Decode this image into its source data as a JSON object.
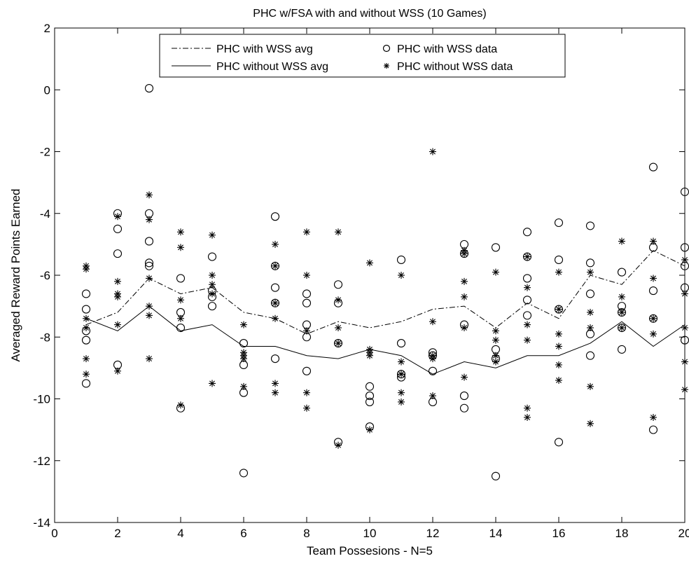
{
  "chart_data": {
    "type": "line",
    "title": "PHC w/FSA with and without WSS (10 Games)",
    "xlabel": "Team Possesions - N=5",
    "ylabel": "Averaged Reward Points Earned",
    "xlim": [
      0,
      20
    ],
    "ylim": [
      -14,
      2
    ],
    "xticks": [
      0,
      2,
      4,
      6,
      8,
      10,
      12,
      14,
      16,
      18,
      20
    ],
    "yticks": [
      2,
      0,
      -2,
      -4,
      -6,
      -8,
      -10,
      -12,
      -14
    ],
    "grid": false,
    "legend_position": "top",
    "x": [
      1,
      2,
      3,
      4,
      5,
      6,
      7,
      8,
      9,
      10,
      11,
      12,
      13,
      14,
      15,
      16,
      17,
      18,
      19,
      20
    ],
    "series": [
      {
        "name": "PHC with WSS avg",
        "style": "dash-dot",
        "values": [
          -7.6,
          -7.2,
          -6.1,
          -6.6,
          -6.4,
          -7.2,
          -7.4,
          -7.9,
          -7.5,
          -7.7,
          -7.5,
          -7.1,
          -7.0,
          -7.7,
          -6.9,
          -7.4,
          -6.0,
          -6.3,
          -5.2,
          -5.7
        ]
      },
      {
        "name": "PHC without WSS avg",
        "style": "solid",
        "values": [
          -7.4,
          -7.8,
          -7.0,
          -7.8,
          -7.6,
          -8.3,
          -8.3,
          -8.6,
          -8.7,
          -8.4,
          -8.6,
          -9.2,
          -8.8,
          -9.0,
          -8.6,
          -8.6,
          -8.2,
          -7.5,
          -8.3,
          -7.6
        ]
      },
      {
        "name": "PHC with WSS data",
        "marker": "circle",
        "points": [
          [
            1,
            -6.6
          ],
          [
            1,
            -7.1
          ],
          [
            1,
            -7.8
          ],
          [
            1,
            -8.1
          ],
          [
            1,
            -9.5
          ],
          [
            2,
            -4.0
          ],
          [
            2,
            -4.5
          ],
          [
            2,
            -5.3
          ],
          [
            2,
            -8.9
          ],
          [
            3,
            0.05
          ],
          [
            3,
            -4.0
          ],
          [
            3,
            -4.9
          ],
          [
            3,
            -5.6
          ],
          [
            3,
            -5.7
          ],
          [
            4,
            -6.1
          ],
          [
            4,
            -7.2
          ],
          [
            4,
            -7.7
          ],
          [
            4,
            -10.3
          ],
          [
            5,
            -5.4
          ],
          [
            5,
            -6.5
          ],
          [
            5,
            -6.7
          ],
          [
            5,
            -7.0
          ],
          [
            6,
            -8.2
          ],
          [
            6,
            -8.9
          ],
          [
            6,
            -9.8
          ],
          [
            6,
            -12.4
          ],
          [
            7,
            -4.1
          ],
          [
            7,
            -5.7
          ],
          [
            7,
            -6.4
          ],
          [
            7,
            -6.9
          ],
          [
            7,
            -8.7
          ],
          [
            8,
            -6.6
          ],
          [
            8,
            -6.9
          ],
          [
            8,
            -7.6
          ],
          [
            8,
            -8.0
          ],
          [
            8,
            -9.1
          ],
          [
            9,
            -6.3
          ],
          [
            9,
            -6.9
          ],
          [
            9,
            -8.2
          ],
          [
            9,
            -11.4
          ],
          [
            10,
            -9.6
          ],
          [
            10,
            -9.9
          ],
          [
            10,
            -10.1
          ],
          [
            10,
            -10.9
          ],
          [
            11,
            -5.5
          ],
          [
            11,
            -8.2
          ],
          [
            11,
            -9.2
          ],
          [
            11,
            -9.3
          ],
          [
            12,
            -8.5
          ],
          [
            12,
            -8.6
          ],
          [
            12,
            -9.1
          ],
          [
            12,
            -10.1
          ],
          [
            13,
            -5.0
          ],
          [
            13,
            -5.3
          ],
          [
            13,
            -7.6
          ],
          [
            13,
            -9.9
          ],
          [
            13,
            -10.3
          ],
          [
            14,
            -5.1
          ],
          [
            14,
            -8.4
          ],
          [
            14,
            -8.7
          ],
          [
            14,
            -12.5
          ],
          [
            15,
            -4.6
          ],
          [
            15,
            -5.4
          ],
          [
            15,
            -6.1
          ],
          [
            15,
            -6.8
          ],
          [
            15,
            -7.3
          ],
          [
            16,
            -4.3
          ],
          [
            16,
            -5.5
          ],
          [
            16,
            -7.1
          ],
          [
            16,
            -11.4
          ],
          [
            17,
            -4.4
          ],
          [
            17,
            -5.6
          ],
          [
            17,
            -6.6
          ],
          [
            17,
            -7.9
          ],
          [
            17,
            -8.6
          ],
          [
            18,
            -5.9
          ],
          [
            18,
            -7.0
          ],
          [
            18,
            -7.2
          ],
          [
            18,
            -7.7
          ],
          [
            18,
            -8.4
          ],
          [
            19,
            -2.5
          ],
          [
            19,
            -5.1
          ],
          [
            19,
            -6.5
          ],
          [
            19,
            -7.4
          ],
          [
            19,
            -11.0
          ],
          [
            20,
            -3.3
          ],
          [
            20,
            -5.1
          ],
          [
            20,
            -5.7
          ],
          [
            20,
            -6.4
          ],
          [
            20,
            -8.1
          ]
        ]
      },
      {
        "name": "PHC without WSS data",
        "marker": "asterisk",
        "points": [
          [
            1,
            -5.7
          ],
          [
            1,
            -5.8
          ],
          [
            1,
            -7.4
          ],
          [
            1,
            -7.7
          ],
          [
            1,
            -8.7
          ],
          [
            1,
            -9.2
          ],
          [
            2,
            -4.1
          ],
          [
            2,
            -6.2
          ],
          [
            2,
            -6.6
          ],
          [
            2,
            -6.7
          ],
          [
            2,
            -7.6
          ],
          [
            2,
            -9.1
          ],
          [
            3,
            -3.4
          ],
          [
            3,
            -4.2
          ],
          [
            3,
            -6.1
          ],
          [
            3,
            -7.0
          ],
          [
            3,
            -7.3
          ],
          [
            3,
            -8.7
          ],
          [
            4,
            -4.6
          ],
          [
            4,
            -5.1
          ],
          [
            4,
            -6.8
          ],
          [
            4,
            -7.4
          ],
          [
            4,
            -10.2
          ],
          [
            5,
            -4.7
          ],
          [
            5,
            -6.0
          ],
          [
            5,
            -6.3
          ],
          [
            5,
            -6.6
          ],
          [
            5,
            -9.5
          ],
          [
            6,
            -7.6
          ],
          [
            6,
            -8.5
          ],
          [
            6,
            -8.6
          ],
          [
            6,
            -8.7
          ],
          [
            6,
            -9.6
          ],
          [
            7,
            -5.0
          ],
          [
            7,
            -5.7
          ],
          [
            7,
            -6.9
          ],
          [
            7,
            -7.4
          ],
          [
            7,
            -9.5
          ],
          [
            7,
            -9.8
          ],
          [
            8,
            -4.6
          ],
          [
            8,
            -6.0
          ],
          [
            8,
            -7.8
          ],
          [
            8,
            -9.8
          ],
          [
            8,
            -10.3
          ],
          [
            9,
            -4.6
          ],
          [
            9,
            -6.8
          ],
          [
            9,
            -7.7
          ],
          [
            9,
            -8.2
          ],
          [
            9,
            -11.5
          ],
          [
            10,
            -5.6
          ],
          [
            10,
            -8.4
          ],
          [
            10,
            -8.5
          ],
          [
            10,
            -8.6
          ],
          [
            10,
            -11.0
          ],
          [
            11,
            -6.0
          ],
          [
            11,
            -8.8
          ],
          [
            11,
            -9.2
          ],
          [
            11,
            -9.8
          ],
          [
            11,
            -10.1
          ],
          [
            12,
            -2.0
          ],
          [
            12,
            -7.5
          ],
          [
            12,
            -8.6
          ],
          [
            12,
            -8.7
          ],
          [
            12,
            -9.9
          ],
          [
            13,
            -5.2
          ],
          [
            13,
            -5.3
          ],
          [
            13,
            -6.2
          ],
          [
            13,
            -6.7
          ],
          [
            13,
            -7.7
          ],
          [
            13,
            -9.3
          ],
          [
            14,
            -5.9
          ],
          [
            14,
            -7.8
          ],
          [
            14,
            -8.1
          ],
          [
            14,
            -8.6
          ],
          [
            14,
            -8.8
          ],
          [
            15,
            -5.4
          ],
          [
            15,
            -6.4
          ],
          [
            15,
            -7.6
          ],
          [
            15,
            -8.1
          ],
          [
            15,
            -10.3
          ],
          [
            15,
            -10.6
          ],
          [
            16,
            -5.9
          ],
          [
            16,
            -7.1
          ],
          [
            16,
            -7.9
          ],
          [
            16,
            -8.3
          ],
          [
            16,
            -8.9
          ],
          [
            16,
            -9.4
          ],
          [
            17,
            -5.9
          ],
          [
            17,
            -7.2
          ],
          [
            17,
            -7.7
          ],
          [
            17,
            -9.6
          ],
          [
            17,
            -10.8
          ],
          [
            18,
            -4.9
          ],
          [
            18,
            -6.7
          ],
          [
            18,
            -7.2
          ],
          [
            18,
            -7.7
          ],
          [
            19,
            -4.9
          ],
          [
            19,
            -6.1
          ],
          [
            19,
            -7.4
          ],
          [
            19,
            -7.9
          ],
          [
            19,
            -10.6
          ],
          [
            20,
            -5.5
          ],
          [
            20,
            -6.6
          ],
          [
            20,
            -7.7
          ],
          [
            20,
            -8.8
          ],
          [
            20,
            -9.7
          ]
        ]
      }
    ]
  }
}
